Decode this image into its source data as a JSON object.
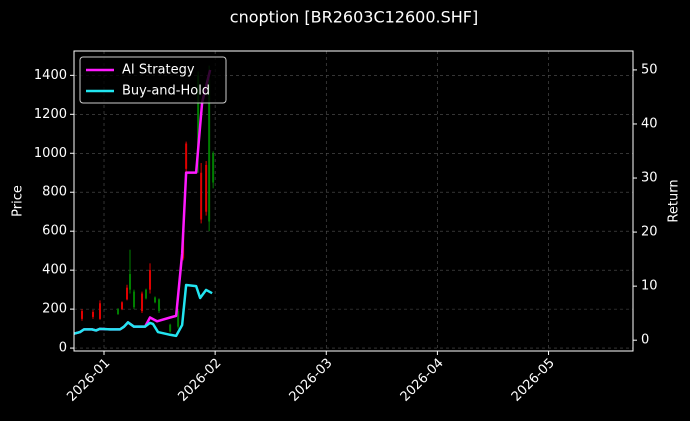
{
  "chart_data": {
    "type": "candlestick",
    "title": "cnoption [BR2603C12600.SHF]",
    "ylabel": "Price",
    "y2label": "Return",
    "x": [
      0.802,
      0.901,
      0.964,
      1.126,
      1.162,
      1.207,
      1.234,
      1.27,
      1.342,
      1.378,
      1.414,
      1.459,
      1.495,
      1.595,
      1.667,
      1.712,
      1.739,
      1.847,
      1.874,
      1.919,
      1.946,
      1.982
    ],
    "open": [
      150,
      160,
      150,
      200,
      200,
      250,
      380,
      290,
      190,
      300,
      300,
      260,
      250,
      120,
      190,
      460,
      920,
      1400,
      660,
      700,
      1380,
      1000
    ],
    "high": [
      200,
      195,
      245,
      205,
      240,
      325,
      505,
      300,
      290,
      305,
      435,
      265,
      255,
      125,
      200,
      610,
      1060,
      1420,
      950,
      960,
      1450,
      1010
    ],
    "low": [
      140,
      150,
      145,
      170,
      195,
      245,
      280,
      200,
      180,
      250,
      280,
      230,
      180,
      80,
      100,
      450,
      900,
      900,
      640,
      680,
      600,
      820
    ],
    "close": [
      190,
      185,
      230,
      175,
      235,
      310,
      300,
      210,
      280,
      255,
      400,
      235,
      190,
      85,
      110,
      600,
      1050,
      1000,
      900,
      940,
      650,
      850
    ],
    "up_color": "#e00000",
    "down_color": "#008000",
    "series": [
      {
        "name": "AI Strategy",
        "color": "#ff1aff",
        "axis": "y2",
        "x": [
          0.73,
          0.784,
          0.82,
          0.892,
          0.928,
          0.964,
          1.054,
          1.144,
          1.18,
          1.216,
          1.27,
          1.369,
          1.414,
          1.477,
          1.595,
          1.649,
          1.703,
          1.739,
          1.829,
          1.883,
          1.955
        ],
        "values": [
          1.2,
          1.5,
          2,
          2,
          1.8,
          2.1,
          2,
          2,
          2.5,
          3.3,
          2.5,
          2.5,
          4.2,
          3.5,
          4.2,
          4.5,
          16,
          31,
          31,
          44,
          50
        ]
      },
      {
        "name": "Buy-and-Hold",
        "color": "#22e5f0",
        "axis": "y2",
        "x": [
          0.73,
          0.784,
          0.82,
          0.892,
          0.928,
          0.964,
          1.054,
          1.144,
          1.18,
          1.216,
          1.27,
          1.369,
          1.414,
          1.441,
          1.486,
          1.595,
          1.649,
          1.703,
          1.739,
          1.829,
          1.865,
          1.919,
          1.973
        ],
        "values": [
          1.2,
          1.5,
          2,
          2,
          1.8,
          2.1,
          2,
          2,
          2.5,
          3.3,
          2.5,
          2.5,
          3.2,
          3,
          1.5,
          1,
          0.8,
          2.8,
          10.2,
          10,
          7.8,
          9.3,
          8.7
        ]
      }
    ],
    "xlim": [
      0.73,
      5.76
    ],
    "xticks": [
      {
        "value": 1,
        "label": "2026-01"
      },
      {
        "value": 2,
        "label": "2026-02"
      },
      {
        "value": 3,
        "label": "2026-03"
      },
      {
        "value": 4,
        "label": "2026-04"
      },
      {
        "value": 5,
        "label": "2026-05"
      }
    ],
    "ylim": [
      -15,
      1525
    ],
    "yticks": [
      0,
      200,
      400,
      600,
      800,
      1000,
      1200,
      1400
    ],
    "y2lim": [
      -2,
      53.5
    ],
    "y2ticks": [
      0,
      10,
      20,
      30,
      40,
      50
    ],
    "grid": true,
    "legend": "upper left"
  }
}
